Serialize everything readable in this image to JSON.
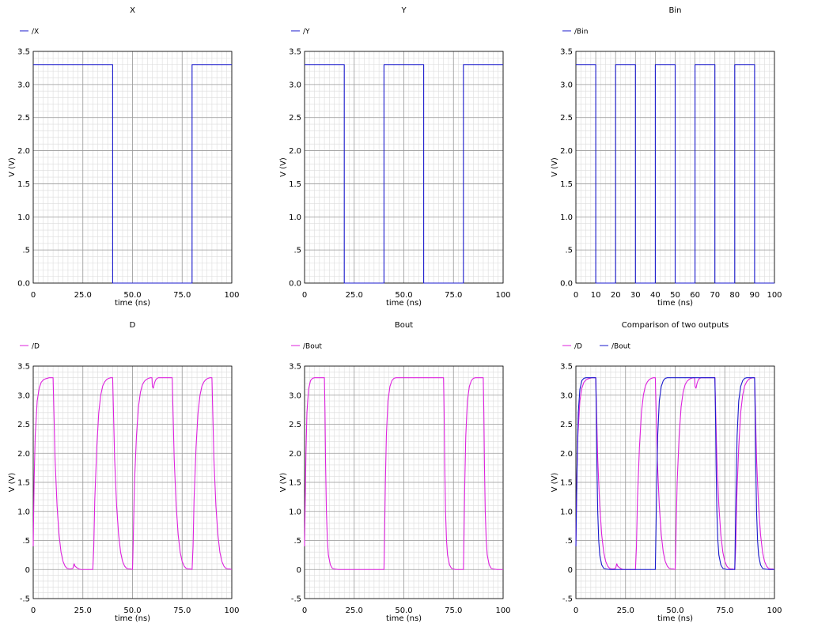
{
  "colors": {
    "blue": "#1a1acc",
    "magenta": "#dd22dd",
    "grid_major": "#9a9a9a",
    "grid_minor": "#dcdcdc"
  },
  "chart_data": [
    {
      "type": "line",
      "title": "X",
      "xlabel": "time (ns)",
      "ylabel": "V (V)",
      "xlim": [
        0,
        100
      ],
      "ylim": [
        0,
        3.5
      ],
      "xticks": [
        "0",
        "25.0",
        "50.0",
        "75.0",
        "100"
      ],
      "yticks": [
        "0.0",
        ".5",
        "1.0",
        "1.5",
        "2.0",
        "2.5",
        "3.0",
        "3.5"
      ],
      "grid": true,
      "legend_position": "top-left",
      "series": [
        {
          "name": "/X",
          "color": "#1a1acc",
          "x": [
            0,
            40,
            40,
            80,
            80,
            100
          ],
          "y": [
            3.3,
            3.3,
            0,
            0,
            3.3,
            3.3
          ]
        }
      ]
    },
    {
      "type": "line",
      "title": "Y",
      "xlabel": "time (ns)",
      "ylabel": "V (V)",
      "xlim": [
        0,
        100
      ],
      "ylim": [
        0,
        3.5
      ],
      "xticks": [
        "0",
        "25.0",
        "50.0",
        "75.0",
        "100"
      ],
      "yticks": [
        "0.0",
        ".5",
        "1.0",
        "1.5",
        "2.0",
        "2.5",
        "3.0",
        "3.5"
      ],
      "grid": true,
      "legend_position": "top-left",
      "series": [
        {
          "name": "/Y",
          "color": "#1a1acc",
          "x": [
            0,
            20,
            20,
            40,
            40,
            60,
            60,
            80,
            80,
            100
          ],
          "y": [
            3.3,
            3.3,
            0,
            0,
            3.3,
            3.3,
            0,
            0,
            3.3,
            3.3
          ]
        }
      ]
    },
    {
      "type": "line",
      "title": "Bin",
      "xlabel": "time (ns)",
      "ylabel": "V (V)",
      "xlim": [
        0,
        100
      ],
      "ylim": [
        0,
        3.5
      ],
      "xticks": [
        "0",
        "10",
        "20",
        "30",
        "40",
        "50",
        "60",
        "70",
        "80",
        "90",
        "100"
      ],
      "yticks": [
        "0.0",
        ".5",
        "1.0",
        "1.5",
        "2.0",
        "2.5",
        "3.0",
        "3.5"
      ],
      "grid": true,
      "legend_position": "top-left",
      "series": [
        {
          "name": "/Bin",
          "color": "#1a1acc",
          "x": [
            0,
            10,
            10,
            20,
            20,
            30,
            30,
            40,
            40,
            50,
            50,
            60,
            60,
            70,
            70,
            80,
            80,
            90,
            90,
            100
          ],
          "y": [
            3.3,
            3.3,
            0,
            0,
            3.3,
            3.3,
            0,
            0,
            3.3,
            3.3,
            0,
            0,
            3.3,
            3.3,
            0,
            0,
            3.3,
            3.3,
            0,
            0
          ]
        }
      ]
    },
    {
      "type": "line",
      "title": "D",
      "xlabel": "time (ns)",
      "ylabel": "V (V)",
      "xlim": [
        0,
        100
      ],
      "ylim": [
        -0.5,
        3.5
      ],
      "xticks": [
        "0",
        "25.0",
        "50.0",
        "75.0",
        "100"
      ],
      "yticks": [
        "-.5",
        "0",
        ".5",
        "1.0",
        "1.5",
        "2.0",
        "2.5",
        "3.0",
        "3.5"
      ],
      "grid": true,
      "legend_position": "top-left",
      "series": [
        {
          "name": "/D",
          "color": "#dd22dd",
          "x": [
            0,
            0.2,
            0.5,
            1,
            2,
            3,
            4,
            5,
            6,
            7,
            8,
            9,
            10,
            10.5,
            11,
            12,
            13,
            14,
            15,
            16,
            17,
            18,
            19,
            20,
            20.6,
            21,
            22,
            23,
            24,
            25,
            26,
            27,
            28,
            29,
            30,
            30.5,
            31,
            32,
            33,
            34,
            35,
            36,
            37,
            38,
            39,
            40,
            40.5,
            41,
            42,
            43,
            44,
            45,
            46,
            47,
            48,
            49,
            50,
            50.3,
            51,
            52,
            53,
            54,
            55,
            56,
            57,
            58,
            59,
            59.8,
            60,
            60.5,
            61,
            61.5,
            62,
            63,
            64,
            65,
            66,
            67,
            68,
            69,
            70,
            70.5,
            71,
            72,
            73,
            74,
            75,
            76,
            77,
            78,
            79,
            80,
            80.5,
            81,
            82,
            83,
            84,
            85,
            86,
            87,
            88,
            89,
            90,
            90.5,
            91,
            92,
            93,
            94,
            95,
            96,
            97,
            98,
            99,
            100
          ],
          "y": [
            0.4,
            0.9,
            1.6,
            2.3,
            2.9,
            3.12,
            3.22,
            3.26,
            3.28,
            3.29,
            3.3,
            3.3,
            3.3,
            2.6,
            1.9,
            1.1,
            0.6,
            0.3,
            0.14,
            0.06,
            0.02,
            0.01,
            0.01,
            0.02,
            0.1,
            0.06,
            0.03,
            0.01,
            0,
            0,
            0,
            0,
            0,
            0,
            0,
            0.4,
            1.2,
            2.1,
            2.7,
            3.0,
            3.16,
            3.23,
            3.27,
            3.29,
            3.3,
            3.3,
            2.6,
            1.9,
            1.1,
            0.6,
            0.3,
            0.14,
            0.06,
            0.02,
            0.01,
            0.01,
            0,
            0.4,
            1.5,
            2.3,
            2.8,
            3.05,
            3.18,
            3.24,
            3.27,
            3.29,
            3.3,
            3.3,
            3.15,
            3.12,
            3.2,
            3.25,
            3.28,
            3.3,
            3.3,
            3.3,
            3.3,
            3.3,
            3.3,
            3.3,
            3.3,
            2.6,
            1.9,
            1.1,
            0.6,
            0.3,
            0.14,
            0.06,
            0.02,
            0.01,
            0.01,
            0,
            0.4,
            1.2,
            2.1,
            2.7,
            3.0,
            3.16,
            3.23,
            3.27,
            3.29,
            3.3,
            3.3,
            2.6,
            1.9,
            1.1,
            0.6,
            0.3,
            0.14,
            0.06,
            0.02,
            0.01,
            0.01,
            0
          ]
        }
      ]
    },
    {
      "type": "line",
      "title": "Bout",
      "xlabel": "time (ns)",
      "ylabel": "V (V)",
      "xlim": [
        0,
        100
      ],
      "ylim": [
        -0.5,
        3.5
      ],
      "xticks": [
        "0",
        "25.0",
        "50.0",
        "75.0",
        "100"
      ],
      "yticks": [
        "-.5",
        "0",
        ".5",
        "1.0",
        "1.5",
        "2.0",
        "2.5",
        "3.0",
        "3.5"
      ],
      "grid": true,
      "legend_position": "top-left",
      "series": [
        {
          "name": "/Bout",
          "color": "#dd22dd",
          "x": [
            0,
            0.3,
            0.7,
            1.2,
            2,
            3,
            4,
            5,
            6,
            7,
            8,
            9,
            10,
            10.3,
            10.6,
            11,
            11.5,
            12,
            13,
            14,
            15,
            17,
            20,
            25,
            30,
            35,
            40,
            40.3,
            40.7,
            41.2,
            42,
            43,
            44,
            45,
            46,
            50,
            55,
            60,
            65,
            70,
            70.3,
            70.6,
            71,
            71.5,
            72,
            73,
            74,
            75,
            76,
            77,
            78,
            79,
            80,
            80.3,
            80.7,
            81.2,
            82,
            83,
            84,
            85,
            86,
            87,
            88,
            89,
            90,
            90.3,
            90.6,
            91,
            91.5,
            92,
            93,
            94,
            95,
            97,
            100
          ],
          "y": [
            0.4,
            1.1,
            2.0,
            2.7,
            3.1,
            3.25,
            3.29,
            3.3,
            3.3,
            3.3,
            3.3,
            3.3,
            3.3,
            2.7,
            1.8,
            1.0,
            0.5,
            0.25,
            0.08,
            0.02,
            0.01,
            0,
            0,
            0,
            0,
            0,
            0,
            0.6,
            1.5,
            2.3,
            2.9,
            3.15,
            3.25,
            3.29,
            3.3,
            3.3,
            3.3,
            3.3,
            3.3,
            3.3,
            2.7,
            1.8,
            1.0,
            0.5,
            0.25,
            0.08,
            0.02,
            0.01,
            0,
            0,
            0,
            0,
            0,
            0.6,
            1.5,
            2.3,
            2.9,
            3.15,
            3.25,
            3.29,
            3.3,
            3.3,
            3.3,
            3.3,
            3.3,
            2.7,
            1.8,
            1.0,
            0.5,
            0.25,
            0.08,
            0.02,
            0.01,
            0,
            0
          ]
        }
      ]
    },
    {
      "type": "line",
      "title": "Comparison of two outputs",
      "xlabel": "time (ns)",
      "ylabel": "V (V)",
      "xlim": [
        0,
        100
      ],
      "ylim": [
        -0.5,
        3.5
      ],
      "xticks": [
        "0",
        "25.0",
        "50.0",
        "75.0",
        "100"
      ],
      "yticks": [
        "-.5",
        "0",
        ".5",
        "1.0",
        "1.5",
        "2.0",
        "2.5",
        "3.0",
        "3.5"
      ],
      "grid": true,
      "legend_position": "top-left",
      "series": [
        {
          "name": "/D",
          "color": "#dd22dd",
          "x": [
            0,
            0.2,
            0.5,
            1,
            2,
            3,
            4,
            5,
            6,
            7,
            8,
            9,
            10,
            10.5,
            11,
            12,
            13,
            14,
            15,
            16,
            17,
            18,
            19,
            20,
            20.6,
            21,
            22,
            23,
            24,
            25,
            26,
            27,
            28,
            29,
            30,
            30.5,
            31,
            32,
            33,
            34,
            35,
            36,
            37,
            38,
            39,
            40,
            40.5,
            41,
            42,
            43,
            44,
            45,
            46,
            47,
            48,
            49,
            50,
            50.3,
            51,
            52,
            53,
            54,
            55,
            56,
            57,
            58,
            59,
            59.8,
            60,
            60.5,
            61,
            61.5,
            62,
            63,
            64,
            65,
            66,
            67,
            68,
            69,
            70,
            70.5,
            71,
            72,
            73,
            74,
            75,
            76,
            77,
            78,
            79,
            80,
            80.5,
            81,
            82,
            83,
            84,
            85,
            86,
            87,
            88,
            89,
            90,
            90.5,
            91,
            92,
            93,
            94,
            95,
            96,
            97,
            98,
            99,
            100
          ],
          "y": [
            0.4,
            0.9,
            1.6,
            2.3,
            2.9,
            3.12,
            3.22,
            3.26,
            3.28,
            3.29,
            3.3,
            3.3,
            3.3,
            2.6,
            1.9,
            1.1,
            0.6,
            0.3,
            0.14,
            0.06,
            0.02,
            0.01,
            0.01,
            0.02,
            0.1,
            0.06,
            0.03,
            0.01,
            0,
            0,
            0,
            0,
            0,
            0,
            0,
            0.4,
            1.2,
            2.1,
            2.7,
            3.0,
            3.16,
            3.23,
            3.27,
            3.29,
            3.3,
            3.3,
            2.6,
            1.9,
            1.1,
            0.6,
            0.3,
            0.14,
            0.06,
            0.02,
            0.01,
            0.01,
            0,
            0.4,
            1.5,
            2.3,
            2.8,
            3.05,
            3.18,
            3.24,
            3.27,
            3.29,
            3.3,
            3.3,
            3.15,
            3.12,
            3.2,
            3.25,
            3.28,
            3.3,
            3.3,
            3.3,
            3.3,
            3.3,
            3.3,
            3.3,
            3.3,
            2.6,
            1.9,
            1.1,
            0.6,
            0.3,
            0.14,
            0.06,
            0.02,
            0.01,
            0.01,
            0,
            0.4,
            1.2,
            2.1,
            2.7,
            3.0,
            3.16,
            3.23,
            3.27,
            3.29,
            3.3,
            3.3,
            2.6,
            1.9,
            1.1,
            0.6,
            0.3,
            0.14,
            0.06,
            0.02,
            0.01,
            0.01,
            0
          ]
        },
        {
          "name": "/Bout",
          "color": "#1a1acc",
          "x": [
            0,
            0.3,
            0.7,
            1.2,
            2,
            3,
            4,
            5,
            6,
            7,
            8,
            9,
            10,
            10.3,
            10.6,
            11,
            11.5,
            12,
            13,
            14,
            15,
            17,
            20,
            25,
            30,
            35,
            40,
            40.3,
            40.7,
            41.2,
            42,
            43,
            44,
            45,
            46,
            50,
            55,
            60,
            65,
            70,
            70.3,
            70.6,
            71,
            71.5,
            72,
            73,
            74,
            75,
            76,
            77,
            78,
            79,
            80,
            80.3,
            80.7,
            81.2,
            82,
            83,
            84,
            85,
            86,
            87,
            88,
            89,
            90,
            90.3,
            90.6,
            91,
            91.5,
            92,
            93,
            94,
            95,
            97,
            100
          ],
          "y": [
            0.4,
            1.1,
            2.0,
            2.7,
            3.1,
            3.25,
            3.29,
            3.3,
            3.3,
            3.3,
            3.3,
            3.3,
            3.3,
            2.7,
            1.8,
            1.0,
            0.5,
            0.25,
            0.08,
            0.02,
            0.01,
            0,
            0,
            0,
            0,
            0,
            0,
            0.6,
            1.5,
            2.3,
            2.9,
            3.15,
            3.25,
            3.29,
            3.3,
            3.3,
            3.3,
            3.3,
            3.3,
            3.3,
            2.7,
            1.8,
            1.0,
            0.5,
            0.25,
            0.08,
            0.02,
            0.01,
            0,
            0,
            0,
            0,
            0,
            0.6,
            1.5,
            2.3,
            2.9,
            3.15,
            3.25,
            3.29,
            3.3,
            3.3,
            3.3,
            3.3,
            3.3,
            2.7,
            1.8,
            1.0,
            0.5,
            0.25,
            0.08,
            0.02,
            0.01,
            0,
            0
          ]
        }
      ]
    }
  ]
}
